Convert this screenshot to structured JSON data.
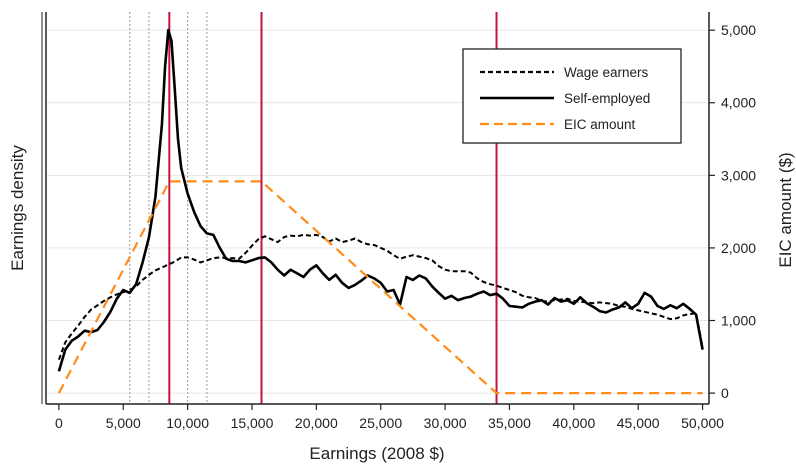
{
  "chart_data": {
    "type": "line",
    "xlabel": "Earnings (2008 $)",
    "ylabel_left": "Earnings density",
    "ylabel_right": "EIC amount ($)",
    "xlim": [
      -1000,
      50500
    ],
    "x_ticks": [
      0,
      5000,
      10000,
      15000,
      20000,
      25000,
      30000,
      35000,
      40000,
      45000,
      50000
    ],
    "x_tick_labels": [
      "0",
      "5,000",
      "10,000",
      "15,000",
      "20,000",
      "25,000",
      "30,000",
      "35,000",
      "40,000",
      "45,000",
      "50,000"
    ],
    "ylim_right": [
      -150,
      5250
    ],
    "y_right_ticks": [
      0,
      1000,
      2000,
      3000,
      4000,
      5000
    ],
    "y_right_tick_labels": [
      "0",
      "1,000",
      "2,000",
      "3,000",
      "4,000",
      "5,000"
    ],
    "grid": true,
    "legend_position": "top-right",
    "series": [
      {
        "name": "Wage earners",
        "style": "dashed",
        "color": "#000000",
        "x": [
          0,
          500,
          1000,
          1500,
          2000,
          2500,
          3000,
          3500,
          4000,
          4500,
          5000,
          5500,
          6000,
          6500,
          7000,
          7500,
          8000,
          8500,
          9000,
          9500,
          10000,
          10500,
          11000,
          11500,
          12000,
          12500,
          13000,
          13500,
          14000,
          14500,
          15000,
          15500,
          16000,
          16500,
          17000,
          17500,
          18000,
          18500,
          19000,
          19500,
          20000,
          20500,
          21000,
          21500,
          22000,
          22500,
          23000,
          23500,
          24000,
          24500,
          25000,
          25500,
          26000,
          26500,
          27000,
          27500,
          28000,
          28500,
          29000,
          29500,
          30000,
          30500,
          31000,
          31500,
          32000,
          32500,
          33000,
          33500,
          34000,
          34500,
          35000,
          35500,
          36000,
          36500,
          37000,
          37500,
          38000,
          38500,
          39000,
          39500,
          40000,
          40500,
          41000,
          41500,
          42000,
          42500,
          43000,
          43500,
          44000,
          44500,
          45000,
          45500,
          46000,
          46500,
          47000,
          47500,
          48000,
          48500,
          49000,
          49500,
          50000
        ],
        "y": [
          460,
          700,
          820,
          930,
          1050,
          1150,
          1210,
          1270,
          1320,
          1360,
          1390,
          1420,
          1470,
          1560,
          1630,
          1690,
          1730,
          1770,
          1810,
          1870,
          1870,
          1840,
          1800,
          1830,
          1860,
          1870,
          1860,
          1860,
          1850,
          1930,
          2030,
          2120,
          2160,
          2120,
          2080,
          2150,
          2170,
          2160,
          2180,
          2170,
          2180,
          2150,
          2090,
          2130,
          2080,
          2100,
          2130,
          2080,
          2050,
          2040,
          2000,
          1960,
          1900,
          1850,
          1880,
          1900,
          1880,
          1860,
          1830,
          1750,
          1700,
          1680,
          1680,
          1680,
          1660,
          1580,
          1530,
          1500,
          1480,
          1450,
          1420,
          1390,
          1340,
          1320,
          1310,
          1270,
          1260,
          1280,
          1290,
          1300,
          1270,
          1260,
          1250,
          1240,
          1250,
          1240,
          1230,
          1200,
          1190,
          1160,
          1140,
          1120,
          1100,
          1080,
          1050,
          1020,
          1030,
          1070,
          1090,
          1100,
          630
        ]
      },
      {
        "name": "Self-employed",
        "style": "solid",
        "color": "#000000",
        "x": [
          0,
          500,
          1000,
          1500,
          2000,
          2500,
          3000,
          3500,
          4000,
          4500,
          5000,
          5500,
          6000,
          6500,
          7000,
          7500,
          8000,
          8250,
          8500,
          8750,
          9000,
          9250,
          9500,
          10000,
          10500,
          11000,
          11500,
          12000,
          12500,
          13000,
          13500,
          14000,
          14500,
          15000,
          15500,
          16000,
          16500,
          17000,
          17500,
          18000,
          18500,
          19000,
          19500,
          20000,
          20500,
          21000,
          21500,
          22000,
          22500,
          23000,
          23500,
          24000,
          24500,
          25000,
          25500,
          26000,
          26500,
          27000,
          27500,
          28000,
          28500,
          29000,
          29500,
          30000,
          30500,
          31000,
          31500,
          32000,
          32500,
          33000,
          33500,
          34000,
          34500,
          35000,
          35500,
          36000,
          36500,
          37000,
          37500,
          38000,
          38500,
          39000,
          39500,
          40000,
          40500,
          41000,
          41500,
          42000,
          42500,
          43000,
          43500,
          44000,
          44500,
          45000,
          45500,
          46000,
          46500,
          47000,
          47500,
          48000,
          48500,
          49000,
          49500,
          50000
        ],
        "y": [
          300,
          600,
          720,
          780,
          860,
          840,
          870,
          980,
          1120,
          1300,
          1420,
          1380,
          1500,
          1800,
          2150,
          2700,
          3700,
          4500,
          5000,
          4850,
          4200,
          3500,
          3100,
          2750,
          2500,
          2300,
          2200,
          2180,
          2000,
          1850,
          1820,
          1820,
          1800,
          1830,
          1860,
          1870,
          1800,
          1700,
          1620,
          1700,
          1650,
          1600,
          1700,
          1760,
          1650,
          1560,
          1630,
          1520,
          1450,
          1490,
          1550,
          1620,
          1580,
          1520,
          1400,
          1420,
          1220,
          1600,
          1560,
          1620,
          1580,
          1470,
          1380,
          1300,
          1340,
          1280,
          1310,
          1330,
          1370,
          1400,
          1350,
          1370,
          1300,
          1200,
          1190,
          1180,
          1230,
          1260,
          1280,
          1220,
          1310,
          1260,
          1280,
          1230,
          1320,
          1240,
          1190,
          1130,
          1110,
          1150,
          1180,
          1250,
          1170,
          1230,
          1380,
          1330,
          1200,
          1160,
          1210,
          1170,
          1230,
          1160,
          1080,
          600
        ]
      },
      {
        "name": "EIC amount",
        "style": "dashed",
        "color": "#ff8c1a",
        "x": [
          0,
          8580,
          15740,
          33995,
          50000
        ],
        "y": [
          0,
          2917,
          2917,
          0,
          0
        ]
      }
    ],
    "vertical_lines": {
      "solid_red": [
        8580,
        15740,
        33995
      ],
      "dotted_gray": [
        5500,
        7000,
        10000,
        11500
      ],
      "red_color": "#c0143c",
      "gray_color": "#aaaaaa"
    }
  }
}
